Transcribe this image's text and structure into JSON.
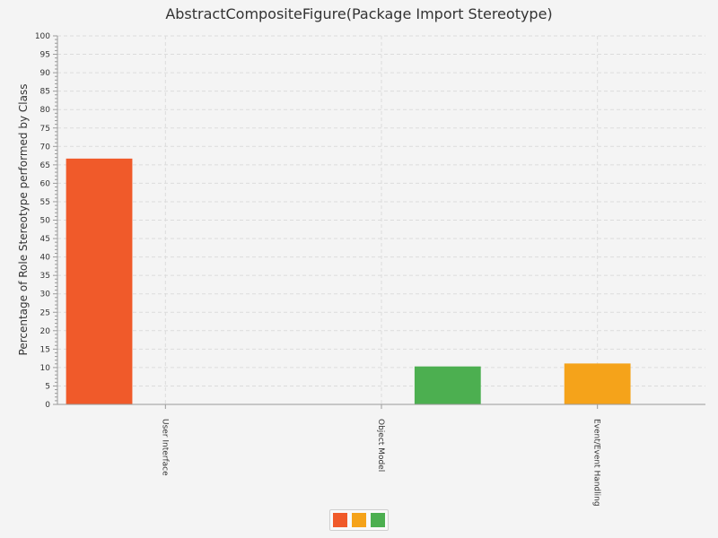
{
  "chart_data": {
    "type": "bar",
    "title": "AbstractCompositeFigure(Package Import Stereotype)",
    "xlabel": "",
    "ylabel": "Percentage of Role Stereotype performed by Class",
    "ylim": [
      0,
      100
    ],
    "yticks": [
      0,
      5,
      10,
      15,
      20,
      25,
      30,
      35,
      40,
      45,
      50,
      55,
      60,
      65,
      70,
      75,
      80,
      85,
      90,
      95,
      100
    ],
    "grid": true,
    "categories": [
      "User Interface",
      "Object Model",
      "Event/Event Handling"
    ],
    "series": [
      {
        "color": "#f05a2a",
        "values": [
          66.7,
          0,
          0
        ]
      },
      {
        "color": "#f5a31a",
        "values": [
          0,
          0,
          11.1
        ]
      },
      {
        "color": "#4caf50",
        "values": [
          0,
          10.3,
          0
        ]
      }
    ],
    "legend_position": "bottom"
  }
}
